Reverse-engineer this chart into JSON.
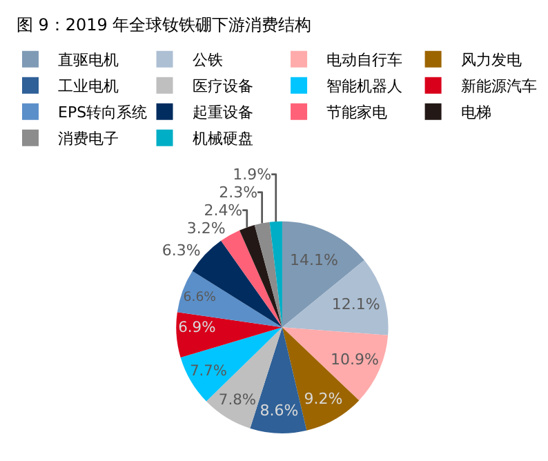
{
  "chart_data": {
    "type": "pie",
    "title": "图 9：2019 年全球钕铁硼下游消费结构",
    "categories": [
      "直驱电机",
      "公铁",
      "电动自行车",
      "风力发电",
      "工业电机",
      "医疗设备",
      "智能机器人",
      "新能源汽车",
      "EPS转向系统",
      "起重设备",
      "节能家电",
      "电梯",
      "消费电子",
      "机械硬盘"
    ],
    "values": [
      14.1,
      12.1,
      10.9,
      9.2,
      8.6,
      7.8,
      7.7,
      6.9,
      6.6,
      6.3,
      3.2,
      2.4,
      2.3,
      1.9
    ],
    "colors": [
      "#7f9ab5",
      "#adbfd3",
      "#ffabab",
      "#9c6500",
      "#2f6097",
      "#bfbfbf",
      "#00c5ff",
      "#d9001b",
      "#5b8fc9",
      "#002c5f",
      "#ff6178",
      "#231815",
      "#8c8c8c",
      "#00aec5"
    ],
    "value_labels": [
      "14.1%",
      "12.1%",
      "10.9%",
      "9.2%",
      "8.6%",
      "7.8%",
      "7.7%",
      "6.9%",
      "6.6%",
      "6.3%",
      "3.2%",
      "2.4%",
      "2.3%",
      "1.9%"
    ],
    "legend": "top"
  }
}
